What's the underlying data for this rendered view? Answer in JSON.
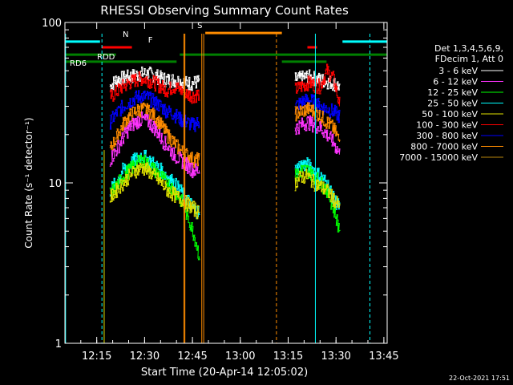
{
  "chart_data": {
    "type": "line",
    "title": "RHESSI Observing Summary Count Rates",
    "xlabel": "Start Time (20-Apr-14 12:05:02)",
    "ylabel": "Count Rate (s⁻¹ detector⁻¹)",
    "yscale": "log",
    "ylim": [
      1,
      100
    ],
    "xlim_minutes": [
      0,
      101
    ],
    "x_ticks": [
      {
        "label": "12:15",
        "value": 9.97
      },
      {
        "label": "12:30",
        "value": 24.97
      },
      {
        "label": "12:45",
        "value": 39.97
      },
      {
        "label": "13:00",
        "value": 54.97
      },
      {
        "label": "13:15",
        "value": 69.97
      },
      {
        "label": "13:30",
        "value": 84.97
      },
      {
        "label": "13:45",
        "value": 99.97
      }
    ],
    "y_ticks": [
      {
        "label": "1",
        "value": 1
      },
      {
        "label": "10",
        "value": 10
      },
      {
        "label": "100",
        "value": 100
      }
    ],
    "footer_date": "22-Oct-2021 17:51",
    "legend": {
      "header": [
        "Det 1,3,4,5,6,9,",
        "FDecim 1, Att 0"
      ],
      "entries": [
        {
          "label": "3 - 6 keV",
          "color": "#ffffff"
        },
        {
          "label": "6 - 12 keV",
          "color": "#ff33ff"
        },
        {
          "label": "12 - 25 keV",
          "color": "#00ff00"
        },
        {
          "label": "25 - 50 keV",
          "color": "#00ffff"
        },
        {
          "label": "50 - 100 keV",
          "color": "#e0e000"
        },
        {
          "label": "100 - 300 keV",
          "color": "#ff0000"
        },
        {
          "label": "300 - 800 keV",
          "color": "#0000ff"
        },
        {
          "label": "800 - 7000 keV",
          "color": "#ff8c00"
        },
        {
          "label": "7000 - 15000 keV",
          "color": "#b8860b"
        }
      ]
    },
    "flags": [
      {
        "label": "N",
        "color": "#00ffff",
        "segments": [
          [
            0,
            11
          ],
          [
            87,
            101
          ]
        ],
        "level": 76
      },
      {
        "label": "F",
        "color": "#ff0000",
        "segments": [
          [
            11.5,
            21
          ],
          [
            76,
            79
          ]
        ],
        "level": 70
      },
      {
        "label": "S",
        "color": "#ff8c00",
        "segments": [
          [
            44,
            68
          ]
        ],
        "level": 86
      },
      {
        "label": "RDD",
        "color": "#008000",
        "segments": [
          [
            0,
            16
          ],
          [
            36,
            101
          ]
        ],
        "level": 63
      },
      {
        "label": "RD6",
        "color": "#008000",
        "segments": [
          [
            0,
            35
          ],
          [
            68,
            82
          ]
        ],
        "level": 57
      }
    ],
    "series": [
      {
        "name": "3 - 6 keV",
        "color": "#ffffff",
        "segments": [
          {
            "x": [
              14,
              16,
              18,
              20,
              22,
              24,
              26,
              28,
              30,
              32,
              34,
              36,
              38,
              40,
              42
            ],
            "y": [
              40,
              44,
              45,
              46,
              47,
              48,
              48,
              47,
              45,
              44,
              44,
              43,
              42,
              42,
              43
            ]
          },
          {
            "x": [
              72,
              74,
              76,
              78,
              80,
              82,
              84,
              86
            ],
            "y": [
              44,
              45,
              46,
              45,
              44,
              43,
              42,
              40
            ]
          }
        ]
      },
      {
        "name": "100 - 300 keV",
        "color": "#ff0000",
        "segments": [
          {
            "x": [
              14,
              16,
              18,
              20,
              22,
              24,
              26,
              28,
              30,
              32,
              34,
              36,
              38,
              40,
              42
            ],
            "y": [
              34,
              37,
              40,
              42,
              44,
              45,
              44,
              42,
              40,
              38,
              40,
              38,
              36,
              35,
              36
            ]
          },
          {
            "x": [
              72,
              74,
              76,
              78,
              80,
              82,
              84,
              86
            ],
            "y": [
              38,
              40,
              42,
              41,
              40,
              50,
              45,
              30
            ]
          }
        ]
      },
      {
        "name": "300 - 800 keV",
        "color": "#0000ff",
        "segments": [
          {
            "x": [
              14,
              16,
              18,
              20,
              22,
              24,
              26,
              28,
              30,
              32,
              34,
              36,
              38,
              40,
              42
            ],
            "y": [
              24,
              27,
              30,
              32,
              34,
              35,
              34,
              32,
              30,
              28,
              27,
              25,
              24,
              23,
              24
            ]
          },
          {
            "x": [
              72,
              74,
              76,
              78,
              80,
              82,
              84,
              86
            ],
            "y": [
              30,
              32,
              33,
              32,
              30,
              29,
              28,
              26
            ]
          }
        ]
      },
      {
        "name": "800 - 7000 keV",
        "color": "#ff8c00",
        "segments": [
          {
            "x": [
              14,
              16,
              18,
              20,
              22,
              24,
              26,
              28,
              30,
              32,
              34,
              36,
              38,
              40,
              42
            ],
            "y": [
              16,
              19,
              23,
              26,
              28,
              29,
              28,
              26,
              23,
              20,
              18,
              16,
              15,
              14,
              14
            ]
          },
          {
            "x": [
              72,
              74,
              76,
              78,
              80,
              82,
              84,
              86
            ],
            "y": [
              27,
              28,
              29,
              28,
              26,
              24,
              22,
              18
            ]
          }
        ]
      },
      {
        "name": "6 - 12 keV",
        "color": "#ff33ff",
        "segments": [
          {
            "x": [
              14,
              16,
              18,
              20,
              22,
              24,
              26,
              28,
              30,
              32,
              34,
              36,
              38,
              40,
              42
            ],
            "y": [
              14,
              16,
              19,
              22,
              24,
              25,
              24,
              22,
              19,
              17,
              15,
              14,
              13,
              12,
              12
            ]
          },
          {
            "x": [
              72,
              74,
              76,
              78,
              80,
              82,
              84,
              86
            ],
            "y": [
              22,
              23,
              24,
              23,
              22,
              20,
              18,
              15
            ]
          }
        ]
      },
      {
        "name": "25 - 50 keV",
        "color": "#00ffff",
        "segments": [
          {
            "x": [
              14,
              16,
              18,
              20,
              22,
              24,
              26,
              28,
              30,
              32,
              34,
              36,
              38,
              40,
              42
            ],
            "y": [
              9,
              10,
              12,
              13,
              14,
              15,
              14,
              13,
              12,
              11,
              10,
              9,
              8,
              7,
              6.5
            ]
          },
          {
            "x": [
              72,
              74,
              76,
              78,
              80,
              82,
              84,
              86
            ],
            "y": [
              12,
              13,
              13,
              12,
              11,
              10,
              8,
              7
            ]
          }
        ]
      },
      {
        "name": "12 - 25 keV",
        "color": "#00ff00",
        "segments": [
          {
            "x": [
              14,
              16,
              18,
              20,
              22,
              24,
              26,
              28,
              30,
              32,
              34,
              36,
              38,
              40,
              42
            ],
            "y": [
              8.5,
              9.5,
              11,
              12,
              13,
              14,
              13,
              12,
              11,
              10,
              9,
              8,
              6.5,
              5,
              3.5
            ]
          },
          {
            "x": [
              72,
              74,
              76,
              78,
              80,
              82,
              84,
              86
            ],
            "y": [
              11,
              12,
              12,
              11,
              10,
              9,
              7,
              5
            ]
          }
        ]
      },
      {
        "name": "50 - 100 keV",
        "color": "#e0e000",
        "segments": [
          {
            "x": [
              14,
              16,
              18,
              20,
              22,
              24,
              26,
              28,
              30,
              32,
              34,
              36,
              38,
              40,
              42
            ],
            "y": [
              8,
              9,
              10,
              11,
              12,
              12.5,
              12,
              11,
              10,
              9,
              8.5,
              8,
              7.5,
              7,
              6.5
            ]
          },
          {
            "x": [
              72,
              74,
              76,
              78,
              80,
              82,
              84,
              86
            ],
            "y": [
              10,
              11,
              11,
              10,
              9.5,
              9,
              8,
              7
            ]
          }
        ]
      }
    ]
  }
}
